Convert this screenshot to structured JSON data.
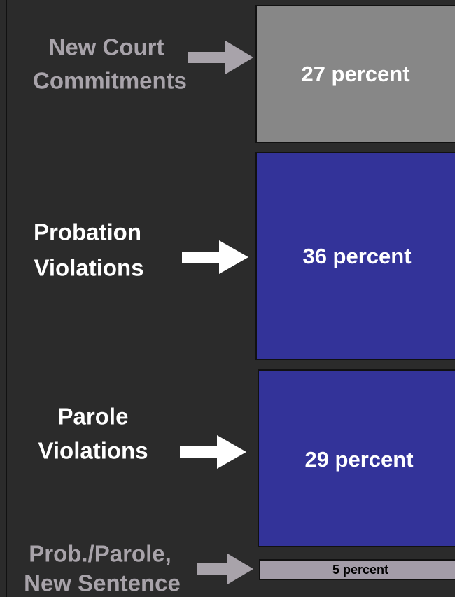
{
  "items": [
    {
      "label": [
        "New Court",
        "Commitments"
      ],
      "value": "27 percent"
    },
    {
      "label": [
        "Probation",
        "Violations"
      ],
      "value": "36 percent"
    },
    {
      "label": [
        "Parole",
        "Violations"
      ],
      "value": "29 percent"
    },
    {
      "label": [
        "Prob./Parole,",
        "New Sentence"
      ],
      "value": "5 percent"
    }
  ]
}
